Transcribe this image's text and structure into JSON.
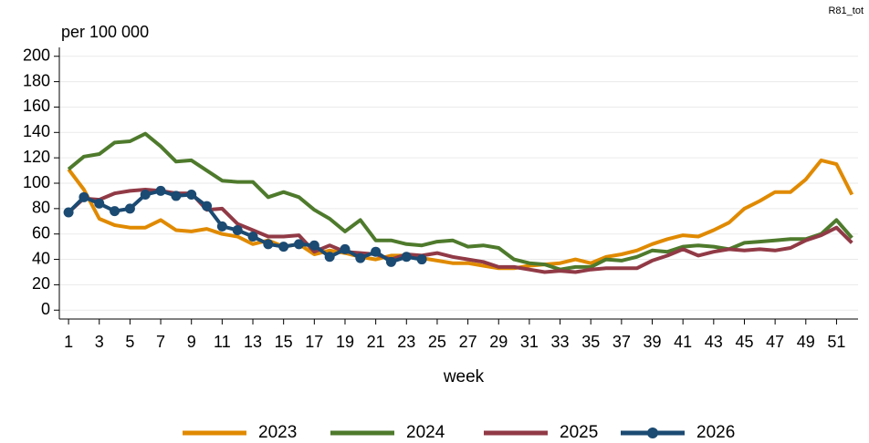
{
  "chart_data": {
    "type": "line",
    "code": "R81_tot",
    "ylabel": "per 100 000",
    "xlabel": "week",
    "x": [
      1,
      2,
      3,
      4,
      5,
      6,
      7,
      8,
      9,
      10,
      11,
      12,
      13,
      14,
      15,
      16,
      17,
      18,
      19,
      20,
      21,
      22,
      23,
      24,
      25,
      26,
      27,
      28,
      29,
      30,
      31,
      32,
      33,
      34,
      35,
      36,
      37,
      38,
      39,
      40,
      41,
      42,
      43,
      44,
      45,
      46,
      47,
      48,
      49,
      50,
      51,
      52
    ],
    "xlim": [
      0.4,
      52.4
    ],
    "xticks": [
      1,
      3,
      5,
      7,
      9,
      11,
      13,
      15,
      17,
      19,
      21,
      23,
      25,
      27,
      29,
      31,
      33,
      35,
      37,
      39,
      41,
      43,
      45,
      47,
      49,
      51
    ],
    "ylim": [
      -7,
      207
    ],
    "yticks": [
      0,
      20,
      40,
      60,
      80,
      100,
      120,
      140,
      160,
      180,
      200
    ],
    "grid": true,
    "legend": "bottom",
    "series": [
      {
        "name": "2023",
        "color": "#e08a00",
        "markers": false,
        "values": [
          111,
          95,
          72,
          67,
          65,
          65,
          71,
          63,
          62,
          64,
          60,
          58,
          52,
          55,
          50,
          52,
          44,
          47,
          45,
          42,
          40,
          43,
          43,
          41,
          39,
          37,
          37,
          35,
          33,
          33,
          35,
          36,
          37,
          40,
          37,
          42,
          44,
          47,
          52,
          56,
          59,
          58,
          63,
          69,
          80,
          86,
          93,
          93,
          103,
          118,
          115,
          91
        ]
      },
      {
        "name": "2024",
        "color": "#4e7a2c",
        "markers": false,
        "values": [
          111,
          121,
          123,
          132,
          133,
          139,
          129,
          117,
          118,
          110,
          102,
          101,
          101,
          89,
          93,
          89,
          79,
          72,
          62,
          71,
          55,
          55,
          52,
          51,
          54,
          55,
          50,
          51,
          49,
          40,
          37,
          36,
          32,
          34,
          34,
          40,
          39,
          42,
          47,
          46,
          50,
          51,
          50,
          48,
          53,
          54,
          55,
          56,
          56,
          60,
          71,
          57
        ]
      },
      {
        "name": "2025",
        "color": "#913a46",
        "markers": false,
        "values": [
          77,
          88,
          87,
          92,
          94,
          95,
          94,
          92,
          92,
          79,
          80,
          68,
          63,
          58,
          58,
          59,
          46,
          51,
          46,
          45,
          44,
          40,
          44,
          43,
          45,
          42,
          40,
          38,
          34,
          34,
          32,
          30,
          31,
          30,
          32,
          33,
          33,
          33,
          39,
          43,
          48,
          43,
          46,
          48,
          47,
          48,
          47,
          49,
          55,
          59,
          65,
          53
        ]
      },
      {
        "name": "2026",
        "color": "#1b4a72",
        "markers": true,
        "values": [
          77,
          89,
          84,
          78,
          80,
          91,
          94,
          90,
          91,
          82,
          66,
          63,
          58,
          52,
          50,
          52,
          51,
          42,
          48,
          41,
          46,
          38,
          42,
          40,
          null,
          null,
          null,
          null,
          null,
          null,
          null,
          null,
          null,
          null,
          null,
          null,
          null,
          null,
          null,
          null,
          null,
          null,
          null,
          null,
          null,
          null,
          null,
          null,
          null,
          null,
          null,
          null
        ]
      }
    ]
  }
}
